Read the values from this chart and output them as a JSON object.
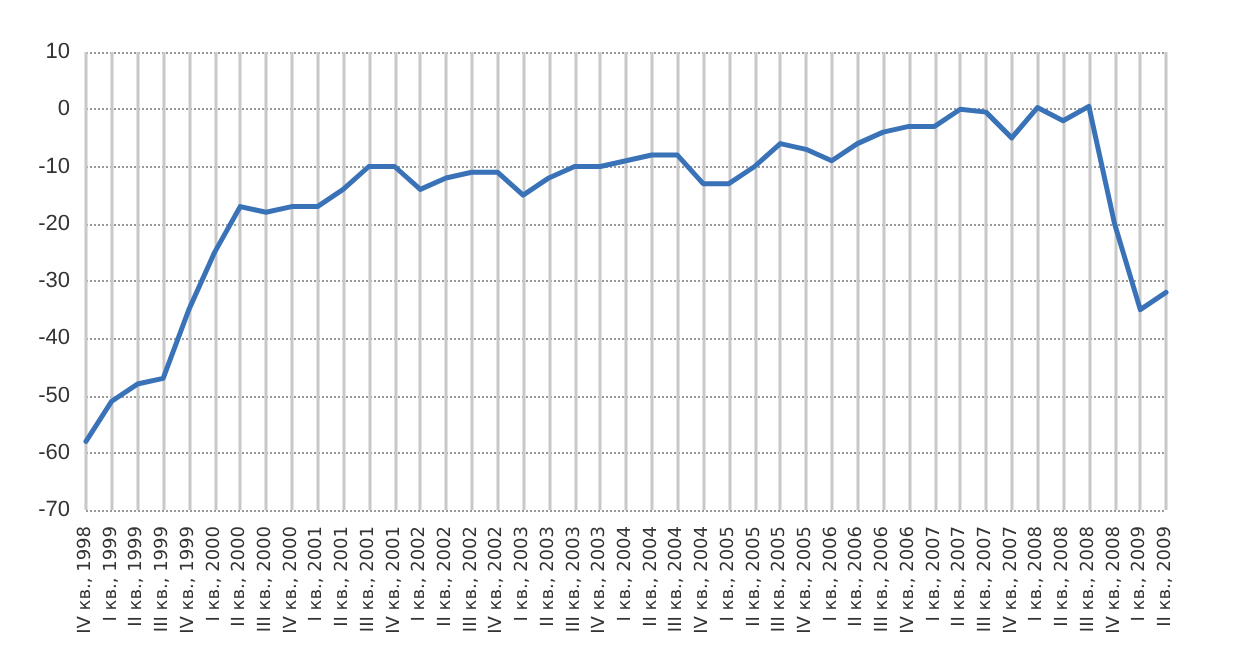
{
  "chart_data": {
    "type": "line",
    "categories": [
      "IV кв., 1998",
      "I кв., 1999",
      "II кв., 1999",
      "III кв., 1999",
      "IV кв., 1999",
      "I кв., 2000",
      "II кв., 2000",
      "III кв., 2000",
      "IV кв., 2000",
      "I кв., 2001",
      "II кв., 2001",
      "III кв., 2001",
      "IV кв., 2001",
      "I кв., 2002",
      "II кв., 2002",
      "III кв., 2002",
      "IV кв., 2002",
      "I кв., 2003",
      "II кв., 2003",
      "III кв., 2003",
      "IV кв., 2003",
      "I кв., 2004",
      "II кв., 2004",
      "III кв., 2004",
      "IV кв., 2004",
      "I кв., 2005",
      "II кв., 2005",
      "III кв., 2005",
      "IV кв., 2005",
      "I кв., 2006",
      "II кв., 2006",
      "III кв., 2006",
      "IV кв., 2006",
      "I кв., 2007",
      "II кв., 2007",
      "III кв., 2007",
      "IV кв., 2007",
      "I кв., 2008",
      "II кв., 2008",
      "III кв., 2008",
      "IV кв., 2008",
      "I кв., 2009",
      "II кв., 2009"
    ],
    "values": [
      -58,
      -51,
      -48,
      -47,
      -35,
      -25,
      -17,
      -18,
      -17,
      -17,
      -14,
      -10,
      -10,
      -14,
      -12,
      -11,
      -11,
      -15,
      -12,
      -10,
      -10,
      -9,
      -8,
      -8,
      -13,
      -13,
      -10,
      -6,
      -7,
      -9,
      -6,
      -4,
      -3,
      -3,
      0,
      -0.5,
      -5,
      0.3,
      -2,
      0.5,
      -20,
      -35,
      -32
    ],
    "color": "#3a72b8",
    "ylim": [
      -70,
      10
    ],
    "yticks": [
      -70,
      -60,
      -50,
      -40,
      -30,
      -20,
      -10,
      0,
      10
    ],
    "grid": true,
    "marker": "none",
    "line_style": "solid"
  }
}
